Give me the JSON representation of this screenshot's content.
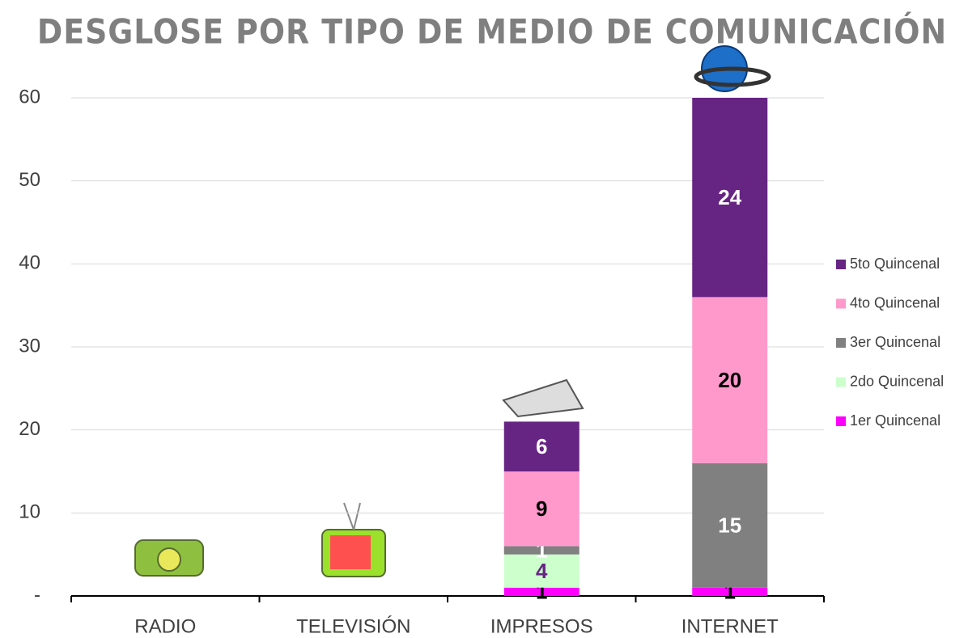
{
  "chart_data": {
    "type": "stacked_bar",
    "title": "DESGLOSE POR TIPO DE MEDIO DE COMUNICACIÓN",
    "categories": [
      "RADIO",
      "TELEVISIÓN",
      "IMPRESOS",
      "INTERNET"
    ],
    "series": [
      {
        "name": "1er Quincenal",
        "color": "#ff00ff",
        "label_color": "#000000",
        "values": [
          null,
          null,
          1,
          1
        ]
      },
      {
        "name": "2do Quincenal",
        "color": "#ccffcc",
        "label_color": "#662483",
        "values": [
          null,
          null,
          4,
          null
        ]
      },
      {
        "name": "3er Quincenal",
        "color": "#808080",
        "label_color": "#ffffff",
        "values": [
          null,
          null,
          1,
          15
        ]
      },
      {
        "name": "4to Quincenal",
        "color": "#ff99cc",
        "label_color": "#000000",
        "values": [
          null,
          null,
          9,
          20
        ]
      },
      {
        "name": "5to Quincenal",
        "color": "#662483",
        "label_color": "#ffffff",
        "values": [
          null,
          null,
          6,
          24
        ]
      }
    ],
    "ylim": [
      0,
      60
    ],
    "yticks": [
      {
        "value": 0,
        "label": "-"
      },
      10,
      20,
      30,
      40,
      50,
      60
    ],
    "grid": true,
    "legend": "right"
  }
}
